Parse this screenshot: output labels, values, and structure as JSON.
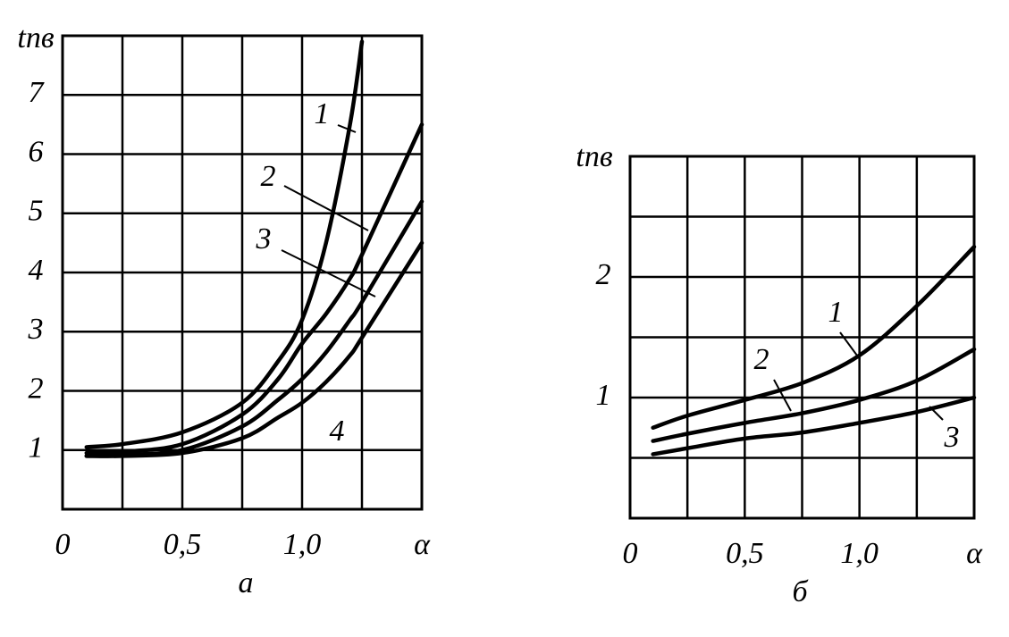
{
  "chart_data": [
    {
      "type": "line",
      "subtitle": "a",
      "y_label": "tпв",
      "x_label": "α",
      "x": [
        0.1,
        0.25,
        0.5,
        0.75,
        0.9,
        1.0,
        1.1,
        1.2,
        1.25,
        1.5
      ],
      "series": [
        {
          "name": "1",
          "color": "#000000",
          "values": [
            1.05,
            1.1,
            1.3,
            1.8,
            2.5,
            3.2,
            4.5,
            6.5,
            7.9,
            null
          ]
        },
        {
          "name": "2",
          "color": "#000000",
          "values": [
            0.95,
            0.97,
            1.1,
            1.6,
            2.2,
            2.8,
            3.3,
            3.9,
            4.3,
            6.5
          ]
        },
        {
          "name": "3",
          "color": "#000000",
          "values": [
            0.9,
            0.92,
            1.0,
            1.4,
            1.85,
            2.2,
            2.65,
            3.2,
            3.5,
            5.2
          ]
        },
        {
          "name": "4",
          "color": "#000000",
          "values": [
            0.9,
            0.9,
            0.95,
            1.2,
            1.55,
            1.8,
            2.15,
            2.6,
            2.9,
            4.5
          ]
        }
      ],
      "xlim": [
        0,
        1.5
      ],
      "xticks": [
        0,
        {
          "value": 0.25,
          "label": null
        },
        {
          "value": 0.5,
          "label": "0,5"
        },
        {
          "value": 0.75,
          "label": null
        },
        {
          "value": 1.0,
          "label": "1,0"
        },
        {
          "value": 1.25,
          "label": null
        }
      ],
      "ylim": [
        0,
        8
      ],
      "yticks": [
        1,
        2,
        3,
        4,
        5,
        6,
        7
      ],
      "grid": true
    },
    {
      "type": "line",
      "subtitle": "б",
      "y_label": "tпв",
      "x_label": "α",
      "x": [
        0.1,
        0.25,
        0.5,
        0.75,
        1.0,
        1.25,
        1.5
      ],
      "series": [
        {
          "name": "1",
          "color": "#000000",
          "values": [
            0.75,
            0.85,
            0.98,
            1.12,
            1.35,
            1.76,
            2.25
          ]
        },
        {
          "name": "2",
          "color": "#000000",
          "values": [
            0.64,
            0.7,
            0.79,
            0.87,
            0.98,
            1.14,
            1.4
          ]
        },
        {
          "name": "3",
          "color": "#000000",
          "values": [
            0.53,
            0.58,
            0.66,
            0.71,
            0.79,
            0.88,
            1.0
          ]
        }
      ],
      "xlim": [
        0,
        1.5
      ],
      "xticks": [
        0,
        {
          "value": 0.25,
          "label": null
        },
        {
          "value": 0.5,
          "label": "0,5"
        },
        {
          "value": 0.75,
          "label": null
        },
        {
          "value": 1.0,
          "label": "1,0"
        },
        {
          "value": 1.25,
          "label": null
        }
      ],
      "ylim": [
        0,
        3
      ],
      "yticks": [
        {
          "value": 0.5,
          "label": null
        },
        1,
        {
          "value": 1.5,
          "label": null
        },
        2,
        {
          "value": 2.5,
          "label": null
        }
      ],
      "grid": true
    }
  ]
}
